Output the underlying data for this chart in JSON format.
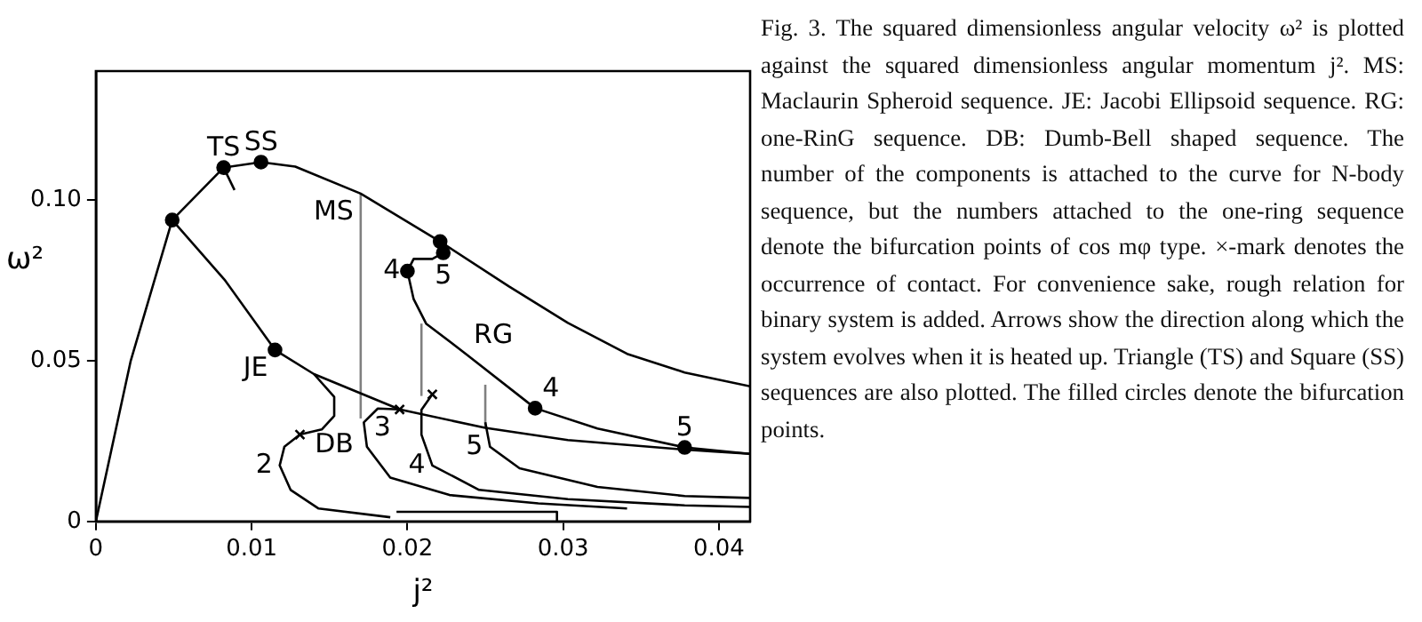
{
  "chart_data": {
    "type": "line",
    "xlabel": "j²",
    "ylabel": "ω²",
    "xlim": [
      0,
      0.042
    ],
    "ylim": [
      0,
      0.14
    ],
    "xticks": [
      0,
      0.01,
      0.02,
      0.03,
      0.04
    ],
    "yticks": [
      0,
      0.05,
      {
        "value": 0.1,
        "label": "0.10"
      }
    ],
    "grid": false,
    "legend": false,
    "marker": "none",
    "line_style": "solid",
    "series": [
      {
        "color": "#000000",
        "x": [
          0,
          0.00224,
          0.0049,
          0.0082,
          0.0106,
          0.0128,
          0.017,
          0.0221,
          0.0265,
          0.0303,
          0.0341,
          0.0378,
          0.042
        ],
        "values": [
          0,
          0.05,
          0.0937,
          0.11,
          0.1117,
          0.1103,
          0.1019,
          0.087,
          0.0731,
          0.0617,
          0.0521,
          0.0463,
          0.042
        ]
      },
      {
        "type": "line",
        "color": "#000000",
        "x": [
          0.0049,
          0.0083,
          0.0115,
          0.014,
          0.0195,
          0.025,
          0.0303,
          0.0378,
          0.042
        ],
        "values": [
          0.0937,
          0.0749,
          0.0533,
          0.0458,
          0.0348,
          0.0291,
          0.0253,
          0.0223,
          0.021
        ]
      },
      {
        "type": "line",
        "color": "#000000",
        "x": [
          0.014,
          0.0153,
          0.0153,
          0.0145,
          0.0131,
          0.0121,
          0.0118,
          0.0125,
          0.0143,
          0.0189
        ],
        "values": [
          0.0458,
          0.0387,
          0.0328,
          0.0286,
          0.027,
          0.0232,
          0.0174,
          0.0098,
          0.004,
          0.0013
        ]
      },
      {
        "type": "line",
        "color": "#000000",
        "x": [
          0.0195,
          0.0181,
          0.0172,
          0.0174,
          0.0189,
          0.0227,
          0.0284,
          0.0341
        ],
        "values": [
          0.0348,
          0.0351,
          0.0308,
          0.0232,
          0.0136,
          0.0082,
          0.0056,
          0.004
        ]
      },
      {
        "type": "line",
        "color": "#000000",
        "x": [
          0.0216,
          0.0209,
          0.0209,
          0.0216,
          0.0246,
          0.0303,
          0.0378,
          0.042
        ],
        "values": [
          0.0395,
          0.0347,
          0.027,
          0.0174,
          0.0098,
          0.0069,
          0.005,
          0.0045
        ]
      },
      {
        "type": "line",
        "color": "#000000",
        "x": [
          0.025,
          0.0253,
          0.0272,
          0.0322,
          0.0378,
          0.042
        ],
        "values": [
          0.0308,
          0.0232,
          0.0165,
          0.0107,
          0.0079,
          0.0073
        ]
      },
      {
        "type": "line",
        "color": "#000000",
        "x": [
          0.0221,
          0.0223,
          0.0216,
          0.0204,
          0.02,
          0.0204,
          0.0212,
          0.0238,
          0.0282,
          0.0322,
          0.0378,
          0.042
        ],
        "values": [
          0.087,
          0.0835,
          0.0816,
          0.0816,
          0.0778,
          0.0691,
          0.0615,
          0.0519,
          0.0352,
          0.0289,
          0.023,
          0.021
        ]
      },
      {
        "type": "line",
        "color": "#000000",
        "x": [
          0.0082,
          0.0089
        ],
        "values": [
          0.11,
          0.103
        ]
      },
      {
        "type": "line",
        "color": "#000000",
        "x": [
          0.0193,
          0.0296,
          0.0296
        ],
        "values": [
          0.003,
          0.003,
          0
        ]
      },
      {
        "type": "line",
        "color": "#808080",
        "x": [
          0.017,
          0.017
        ],
        "values": [
          0.032,
          0.1019
        ]
      },
      {
        "type": "line",
        "color": "#808080",
        "x": [
          0.0209,
          0.0209
        ],
        "values": [
          0.039,
          0.0615
        ]
      },
      {
        "type": "line",
        "color": "#808080",
        "x": [
          0.025,
          0.025
        ],
        "values": [
          0.0295,
          0.0425
        ]
      },
      {
        "type": "scatter",
        "marker": "circle",
        "color": "#000000",
        "x": [
          0.0049,
          0.0082,
          0.0106,
          0.0115,
          0.0221,
          0.0223,
          0.02,
          0.0282,
          0.0378
        ],
        "values": [
          0.0937,
          0.11,
          0.1117,
          0.0533,
          0.087,
          0.0835,
          0.0778,
          0.0352,
          0.023
        ]
      },
      {
        "type": "scatter",
        "marker": "cross",
        "color": "#000000",
        "x": [
          0.0131,
          0.0195,
          0.0216
        ],
        "values": [
          0.027,
          0.0348,
          0.0395
        ]
      }
    ],
    "annotations": [
      {
        "text": "TS",
        "x": 0.0082,
        "y": 0.11
      },
      {
        "text": "SS",
        "x": 0.0106,
        "y": 0.1117
      },
      {
        "text": "MS",
        "x": 0.017,
        "y": 0.1019
      },
      {
        "text": "JE",
        "x": 0.0115,
        "y": 0.0533
      },
      {
        "text": "DB",
        "x": 0.0153,
        "y": 0.0328
      },
      {
        "text": "2",
        "x": 0.0118,
        "y": 0.0174
      },
      {
        "text": "3",
        "x": 0.0174,
        "y": 0.0232
      },
      {
        "text": "4",
        "x": 0.0216,
        "y": 0.0174
      },
      {
        "text": "5",
        "x": 0.0253,
        "y": 0.0232
      },
      {
        "text": "4",
        "x": 0.02,
        "y": 0.0778
      },
      {
        "text": "5",
        "x": 0.0223,
        "y": 0.0835
      },
      {
        "text": "RG",
        "x": 0.0238,
        "y": 0.0519
      },
      {
        "text": "4",
        "x": 0.0282,
        "y": 0.0352
      },
      {
        "text": "5",
        "x": 0.0378,
        "y": 0.023
      },
      "Fig. 3.  The squared dimensionless angular velocity ω² is plotted against the squared dimensionless angular momentum j².  MS: Maclaurin Spheroid sequence.  JE: Jacobi Ellipsoid sequence.  RG: one-RinG sequence.  DB: Dumb-Bell shaped sequence.  The number of the components is attached to the curve for N-body sequence, but the numbers attached to the one-ring sequence denote the bifurcation points of cos mφ type.  ×-mark denotes the occurrence of contact.  For convenience sake, rough relation for binary system is added.  Arrows show the direction along which the system evolves when it is heated up.  Triangle (TS) and Square (SS) sequences are also plotted.  The filled circles denote the bifurcation points."
    ]
  }
}
